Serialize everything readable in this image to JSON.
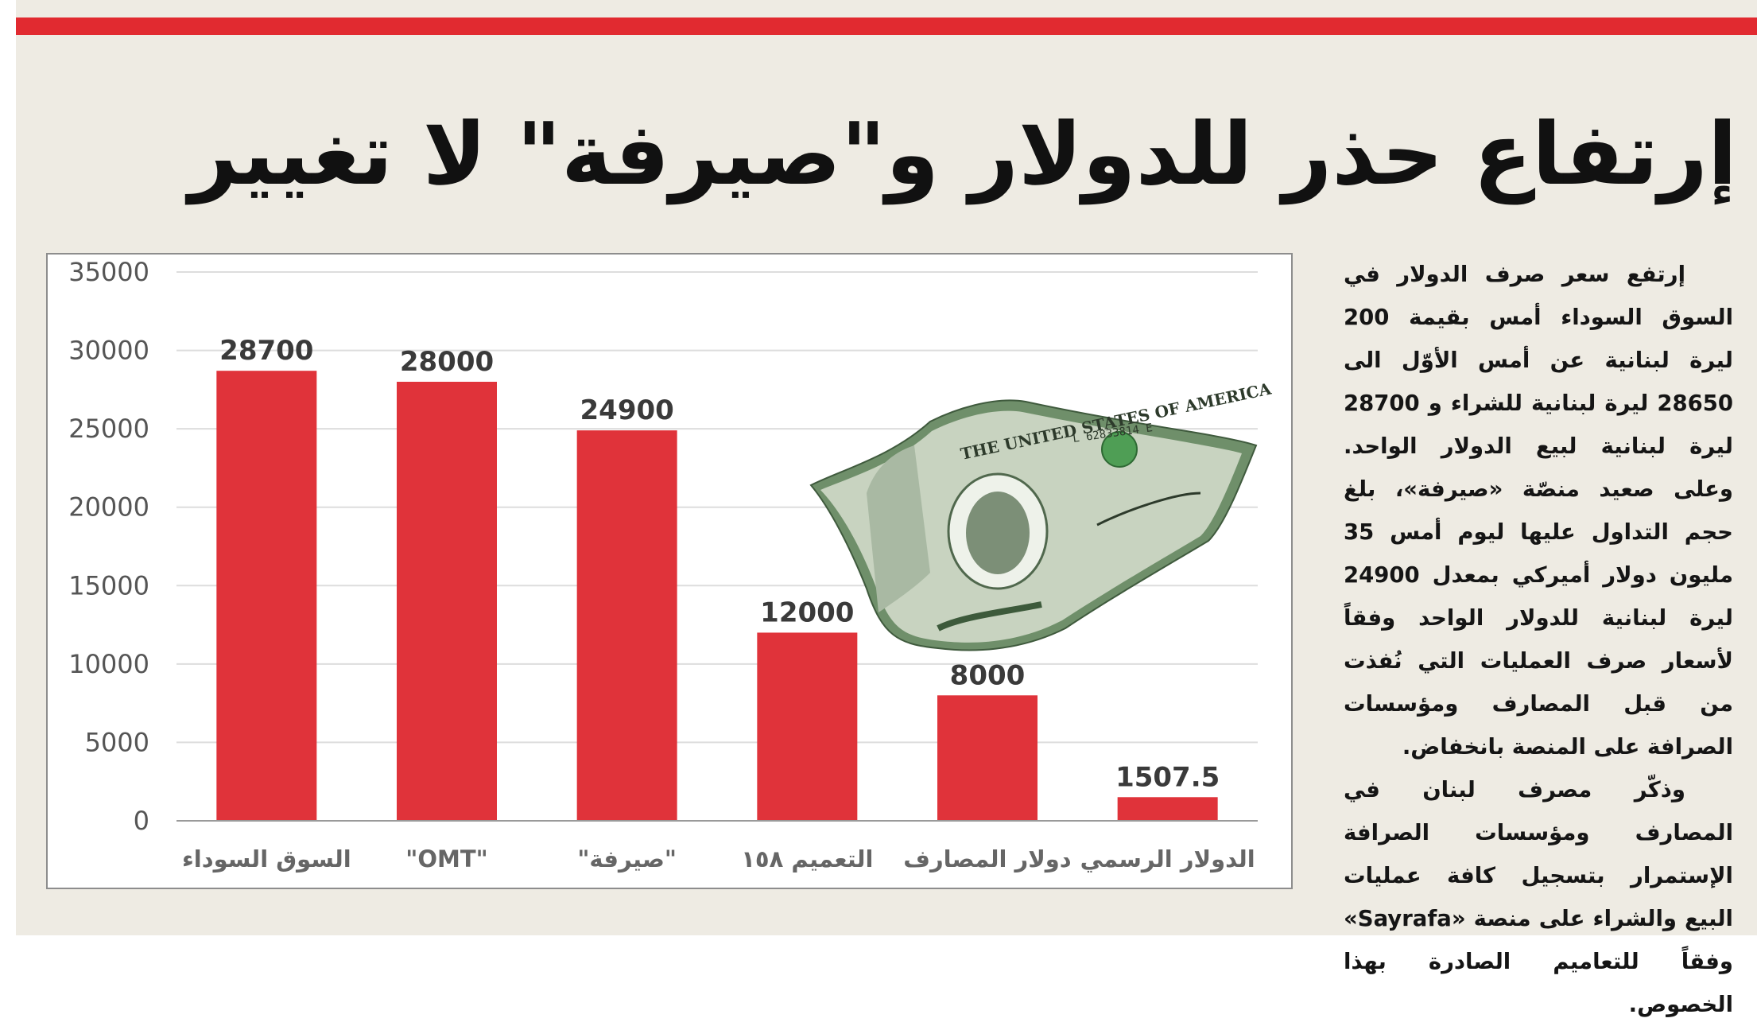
{
  "headline": "إرتفاع حذر للدولار و\"صيرفة\" لا تغيير",
  "chart_data": {
    "type": "bar",
    "categories": [
      "السوق السوداء",
      "\"OMT\"",
      "\"صيرفة\"",
      "التعميم ١٥٨",
      "دولار المصارف",
      "الدولار الرسمي"
    ],
    "values": [
      28700,
      28000,
      24900,
      12000,
      8000,
      1507.5
    ],
    "value_labels": [
      "28700",
      "28000",
      "24900",
      "12000",
      "8000",
      "1507.5"
    ],
    "ylim": [
      0,
      35000
    ],
    "yticks": [
      "35000",
      "30000",
      "25000",
      "20000",
      "15000",
      "10000",
      "5000",
      "0"
    ],
    "ytick_values": [
      35000,
      30000,
      25000,
      20000,
      15000,
      10000,
      5000,
      0
    ],
    "grid": true,
    "colors": {
      "bar": "#e0333a",
      "grid": "#dddddd",
      "axis": "#9a9a9a",
      "tick_text": "#555555",
      "value_text": "#3a3a3a"
    }
  },
  "illustration": {
    "icon": "dollar-bill-icon",
    "bill_text": [
      "THE UNITED STATES OF AMERICA",
      "L 62833814 E"
    ]
  },
  "article": {
    "paragraphs": [
      "إرتفع سعر صرف الدولار في السوق السوداء أمس بقيمة 200 ليرة لبنانية عن أمس الأوّل الى 28650 ليرة لبنانية للشراء و 28700 ليرة لبنانية لبيع الدولار الواحد. وعلى صعيد منصّة «صيرفة»، بلغ حجم التداول عليها ليوم أمس 35 مليون دولار أميركي بمعدل 24900 ليرة لبنانية للدولار الواحد وفقاً لأسعار صرف العمليات التي نُفذت من قبل المصارف ومؤسسات الصرافة على المنصة بانخفاض.",
      "وذكّر مصرف لبنان في المصارف ومؤسسات الصرافة الإستمرار بتسجيل كافة عمليات البيع والشراء على منصة «Sayrafa» وفقاً للتعاميم الصادرة بهذا الخصوص."
    ]
  }
}
